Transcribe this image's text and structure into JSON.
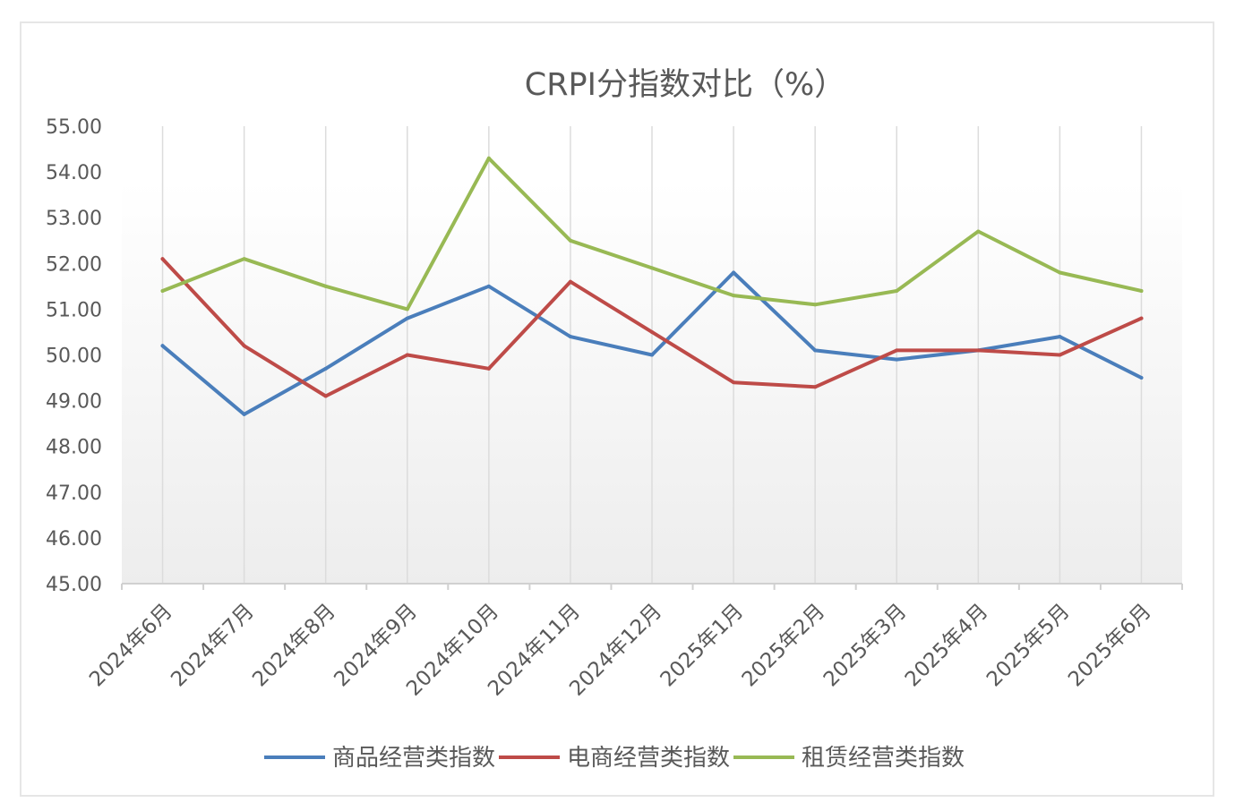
{
  "chart_data": {
    "type": "line",
    "title": "CRPI分指数对比（%）",
    "xlabel": "",
    "ylabel": "",
    "categories": [
      "2024年6月",
      "2024年7月",
      "2024年8月",
      "2024年9月",
      "2024年10月",
      "2024年11月",
      "2024年12月",
      "2025年1月",
      "2025年2月",
      "2025年3月",
      "2025年4月",
      "2025年5月",
      "2025年6月"
    ],
    "ylim": [
      45,
      55
    ],
    "yticks": [
      "45.00",
      "46.00",
      "47.00",
      "48.00",
      "49.00",
      "50.00",
      "51.00",
      "52.00",
      "53.00",
      "54.00",
      "55.00"
    ],
    "grid": "vertical",
    "legend_position": "bottom",
    "series": [
      {
        "name": "商品经营类指数",
        "color": "#4a7ebb",
        "values": [
          50.2,
          48.7,
          49.7,
          50.8,
          51.5,
          50.4,
          50.0,
          51.8,
          50.1,
          49.9,
          50.1,
          50.4,
          49.5
        ]
      },
      {
        "name": "电商经营类指数",
        "color": "#be4b48",
        "values": [
          52.1,
          50.2,
          49.1,
          50.0,
          49.7,
          51.6,
          50.5,
          49.4,
          49.3,
          50.1,
          50.1,
          50.0,
          50.8
        ]
      },
      {
        "name": "租赁经营类指数",
        "color": "#98b954",
        "values": [
          51.4,
          52.1,
          51.5,
          51.0,
          54.3,
          52.5,
          51.9,
          51.3,
          51.1,
          51.4,
          52.7,
          51.8,
          51.4
        ]
      }
    ]
  }
}
